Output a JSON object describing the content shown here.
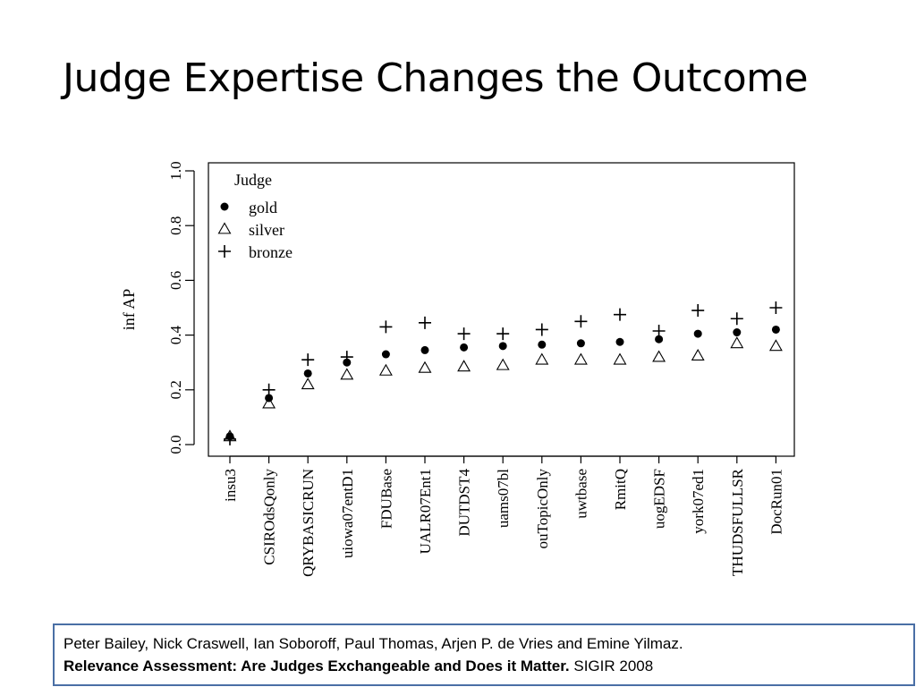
{
  "slide": {
    "title": "Judge Expertise Changes the Outcome"
  },
  "citation": {
    "authors": "Peter Bailey, Nick Craswell, Ian Soboroff, Paul Thomas, Arjen P. de Vries and Emine Yilmaz.",
    "paper_title": "Relevance Assessment: Are Judges Exchangeable and Does it Matter.",
    "venue": "SIGIR 2008"
  },
  "chart_data": {
    "type": "scatter",
    "title": "",
    "xlabel": "",
    "ylabel": "inf AP",
    "ylim": [
      0.0,
      1.0
    ],
    "yticks": [
      "0.0",
      "0.2",
      "0.4",
      "0.6",
      "0.8",
      "1.0"
    ],
    "grid": false,
    "legend_title": "Judge",
    "legend_position": "top-left",
    "categories": [
      "insu3",
      "CSIROdsQonly",
      "QRYBASICRUN",
      "uiowa07entD1",
      "FDUBase",
      "UALR07Ent1",
      "DUTDST4",
      "uams07bl",
      "ouTopicOnly",
      "uwtbase",
      "RmitQ",
      "uogEDSF",
      "york07ed1",
      "THUDSFULLSR",
      "DocRun01"
    ],
    "series": [
      {
        "name": "gold",
        "marker": "filled-circle",
        "values": [
          0.03,
          0.17,
          0.26,
          0.3,
          0.33,
          0.345,
          0.355,
          0.36,
          0.365,
          0.37,
          0.375,
          0.385,
          0.405,
          0.41,
          0.42
        ]
      },
      {
        "name": "silver",
        "marker": "triangle",
        "values": [
          0.03,
          0.15,
          0.22,
          0.255,
          0.27,
          0.28,
          0.285,
          0.29,
          0.31,
          0.31,
          0.31,
          0.32,
          0.325,
          0.37,
          0.36
        ]
      },
      {
        "name": "bronze",
        "marker": "plus",
        "values": [
          0.02,
          0.2,
          0.31,
          0.32,
          0.43,
          0.445,
          0.405,
          0.405,
          0.42,
          0.45,
          0.475,
          0.415,
          0.49,
          0.46,
          0.5
        ]
      }
    ]
  }
}
